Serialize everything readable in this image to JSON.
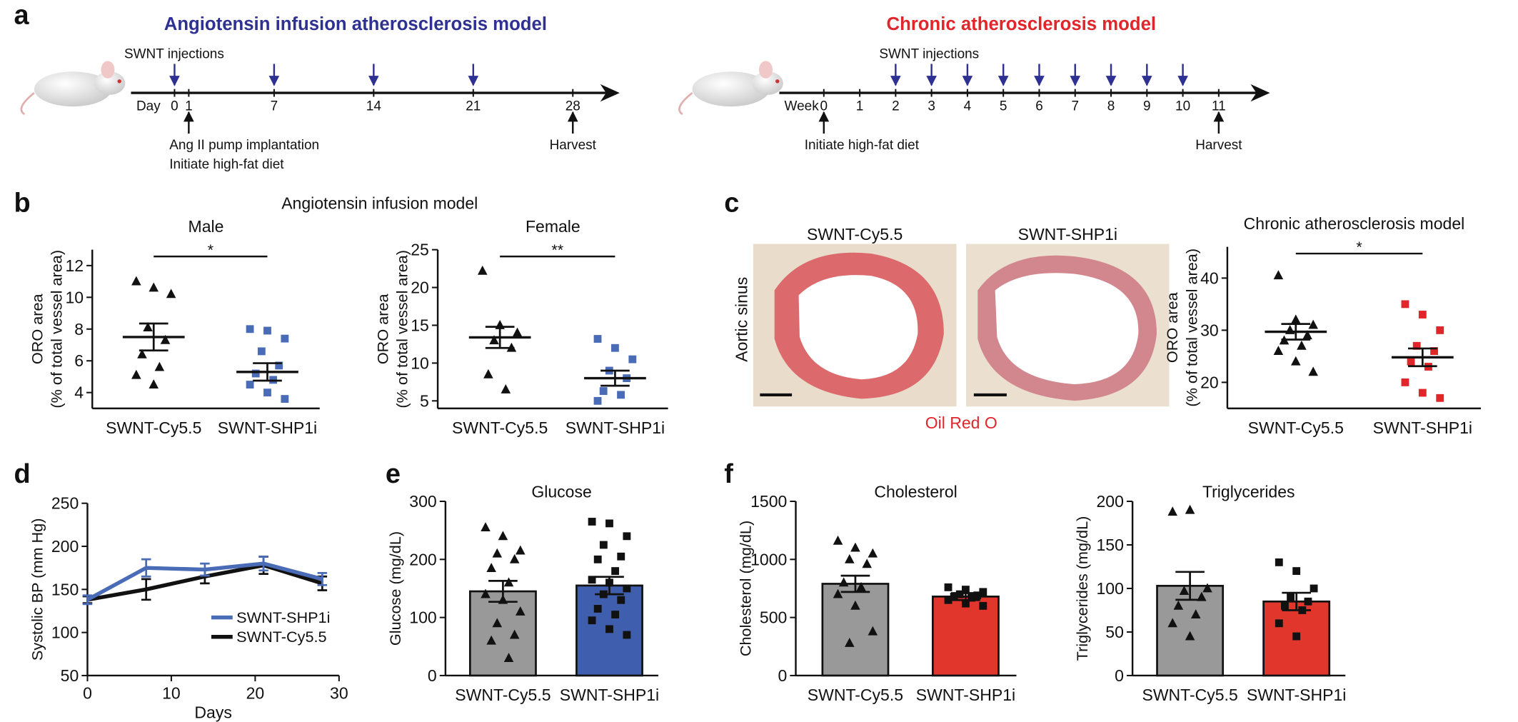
{
  "panel_labels": [
    "a",
    "b",
    "c",
    "d",
    "e",
    "f"
  ],
  "timelines": [
    {
      "title": "Angiotensin infusion atherosclerosis model",
      "title_color": "#2e3192",
      "unit": "Day",
      "ticks": [
        0,
        1,
        7,
        14,
        21,
        28
      ],
      "injections": {
        "label": "SWNT injections",
        "at": [
          0,
          7,
          14,
          21
        ],
        "color": "#2e3192"
      },
      "events": [
        {
          "at": 1,
          "lines": [
            "Ang II pump implantation",
            "Initiate high-fat diet"
          ]
        },
        {
          "at": 28,
          "lines": [
            "Harvest"
          ]
        }
      ]
    },
    {
      "title": "Chronic atherosclerosis model",
      "title_color": "#e0262b",
      "unit": "Week",
      "ticks": [
        0,
        1,
        2,
        3,
        4,
        5,
        6,
        7,
        8,
        9,
        10,
        11
      ],
      "injections": {
        "label": "SWNT injections",
        "at": [
          2,
          3,
          4,
          5,
          6,
          7,
          8,
          9,
          10
        ],
        "color": "#2e3192"
      },
      "events": [
        {
          "at": 0,
          "lines": [
            "Initiate high-fat diet"
          ]
        },
        {
          "at": 11,
          "lines": [
            "Harvest"
          ]
        }
      ]
    }
  ],
  "panel_b_title": "Angiotensin infusion model",
  "histology": {
    "images": [
      "SWNT-Cy5.5",
      "SWNT-SHP1i"
    ],
    "row_label": "Aortic sinus",
    "stain": "Oil Red O",
    "stain_color": "#e0262b"
  },
  "chart_data": [
    {
      "type": "dotplot",
      "title": "Male",
      "ylabel": [
        "ORO area",
        "(% of total vessel area)"
      ],
      "categories": [
        "SWNT-Cy5.5",
        "SWNT-SHP1i"
      ],
      "colors": [
        "#111111",
        "#4a6bb5"
      ],
      "markers": [
        "triangle",
        "square"
      ],
      "points": [
        [
          11.0,
          10.6,
          10.2,
          8.1,
          7.3,
          6.4,
          5.6,
          5.1,
          4.5
        ],
        [
          8.0,
          7.9,
          7.4,
          6.6,
          5.7,
          5.2,
          4.8,
          4.5,
          4.0,
          3.6
        ]
      ],
      "means": [
        7.5,
        5.3
      ],
      "errors": [
        0.85,
        0.55
      ],
      "significance": "*",
      "ylim": [
        3,
        13
      ],
      "yticks": [
        4,
        6,
        8,
        10,
        12
      ]
    },
    {
      "type": "dotplot",
      "title": "Female",
      "ylabel": [
        "ORO area",
        "(% of total vessel area)"
      ],
      "categories": [
        "SWNT-Cy5.5",
        "SWNT-SHP1i"
      ],
      "colors": [
        "#111111",
        "#4a6bb5"
      ],
      "markers": [
        "triangle",
        "square"
      ],
      "points": [
        [
          22.2,
          15.0,
          14.0,
          13.0,
          12.0,
          8.5,
          6.5
        ],
        [
          13.2,
          12.0,
          10.5,
          9.0,
          8.0,
          6.3,
          5.8,
          5.0
        ]
      ],
      "means": [
        13.4,
        8.0
      ],
      "errors": [
        1.4,
        1.0
      ],
      "significance": "**",
      "ylim": [
        4,
        25
      ],
      "yticks": [
        5,
        10,
        15,
        20,
        25
      ]
    },
    {
      "type": "dotplot",
      "title": "Chronic atherosclerosis model",
      "ylabel": [
        "ORO area",
        "(% of total vessel area)"
      ],
      "categories": [
        "SWNT-Cy5.5",
        "SWNT-SHP1i"
      ],
      "colors": [
        "#111111",
        "#e0262b"
      ],
      "markers": [
        "triangle",
        "square"
      ],
      "points": [
        [
          40.5,
          32,
          31,
          30,
          29,
          28,
          27,
          26,
          24,
          22
        ],
        [
          35,
          33,
          30,
          27,
          26,
          24,
          23,
          20,
          18,
          17
        ]
      ],
      "means": [
        29.7,
        24.8
      ],
      "errors": [
        1.5,
        1.7
      ],
      "significance": "*",
      "ylim": [
        15,
        46
      ],
      "yticks": [
        20,
        30,
        40
      ]
    },
    {
      "type": "line",
      "xlabel": "Days",
      "ylabel": "Systolic BP (mm Hg)",
      "x": [
        0,
        7,
        14,
        21,
        28
      ],
      "series": [
        {
          "name": "SWNT-SHP1i",
          "color": "#4a6bb5",
          "values": [
            138,
            175,
            173,
            180,
            162
          ],
          "errors": [
            5,
            10,
            7,
            8,
            7
          ]
        },
        {
          "name": "SWNT-Cy5.5",
          "color": "#111111",
          "values": [
            138,
            150,
            165,
            178,
            157
          ],
          "errors": [
            4,
            12,
            8,
            10,
            8
          ]
        }
      ],
      "xlim": [
        0,
        30
      ],
      "xticks": [
        0,
        10,
        20,
        30
      ],
      "ylim": [
        50,
        250
      ],
      "yticks": [
        50,
        100,
        150,
        200,
        250
      ],
      "legend": "lower right"
    },
    {
      "type": "bar",
      "title": "Glucose",
      "ylabel": "Glucose (mg/dL)",
      "categories": [
        "SWNT-Cy5.5",
        "SWNT-SHP1i"
      ],
      "values": [
        145,
        155
      ],
      "errors": [
        18,
        15
      ],
      "colors": [
        "#999999",
        "#3f5fae"
      ],
      "markers": [
        "triangle",
        "square"
      ],
      "points": [
        [
          255,
          240,
          215,
          210,
          200,
          185,
          160,
          140,
          130,
          110,
          90,
          70,
          60,
          30
        ],
        [
          265,
          262,
          240,
          225,
          205,
          200,
          180,
          165,
          160,
          150,
          140,
          130,
          115,
          105,
          95,
          80,
          70
        ]
      ],
      "ylim": [
        0,
        300
      ],
      "yticks": [
        0,
        100,
        200,
        300
      ]
    },
    {
      "type": "bar",
      "title": "Cholesterol",
      "ylabel": "Cholesterol (mg/dL)",
      "categories": [
        "SWNT-Cy5.5",
        "SWNT-SHP1i"
      ],
      "values": [
        790,
        680
      ],
      "errors": [
        70,
        30
      ],
      "colors": [
        "#999999",
        "#e0362b"
      ],
      "markers": [
        "triangle",
        "square"
      ],
      "points": [
        [
          1160,
          1100,
          1050,
          1000,
          960,
          800,
          760,
          700,
          600,
          380,
          280
        ],
        [
          760,
          740,
          720,
          700,
          690,
          680,
          670,
          650,
          620,
          600
        ]
      ],
      "ylim": [
        0,
        1500
      ],
      "yticks": [
        0,
        500,
        1000,
        1500
      ]
    },
    {
      "type": "bar",
      "title": "Triglycerides",
      "ylabel": "Triglycerides (mg/dL)",
      "categories": [
        "SWNT-Cy5.5",
        "SWNT-SHP1i"
      ],
      "values": [
        103,
        85
      ],
      "errors": [
        16,
        10
      ],
      "colors": [
        "#999999",
        "#e0362b"
      ],
      "markers": [
        "triangle",
        "square"
      ],
      "points": [
        [
          188,
          190,
          100,
          97,
          90,
          80,
          70,
          60,
          45
        ],
        [
          130,
          120,
          100,
          90,
          85,
          80,
          75,
          60,
          45
        ]
      ],
      "ylim": [
        0,
        200
      ],
      "yticks": [
        0,
        50,
        100,
        150,
        200
      ]
    }
  ]
}
